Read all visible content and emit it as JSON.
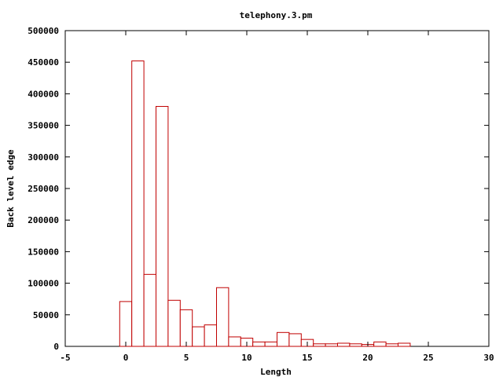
{
  "chart_data": {
    "type": "bar",
    "title": "telephony.3.pm",
    "xlabel": "Length",
    "ylabel": "Back level edge",
    "xlim": [
      -5,
      30
    ],
    "ylim": [
      0,
      500000
    ],
    "xticks": [
      -5,
      0,
      5,
      10,
      15,
      20,
      25,
      30
    ],
    "yticks": [
      0,
      50000,
      100000,
      150000,
      200000,
      250000,
      300000,
      350000,
      400000,
      450000,
      500000
    ],
    "bar_width": 1,
    "grid": false,
    "legend": "none",
    "bar_color": "#c00000",
    "x": [
      0,
      1,
      2,
      3,
      4,
      5,
      6,
      7,
      8,
      9,
      10,
      11,
      12,
      13,
      14,
      15,
      16,
      17,
      18,
      19,
      20,
      21,
      22,
      23
    ],
    "values": [
      71000,
      452000,
      114000,
      380000,
      73000,
      58000,
      31000,
      34000,
      93000,
      15000,
      13000,
      7000,
      7000,
      22000,
      20000,
      11000,
      4000,
      4000,
      5000,
      4000,
      3000,
      7000,
      4000,
      5000
    ]
  }
}
